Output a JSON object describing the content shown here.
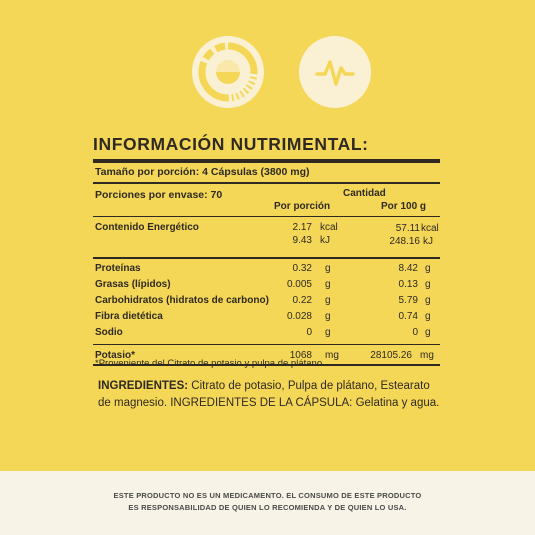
{
  "colors": {
    "background": "#F5D758",
    "icon_circle": "#FAF1D5",
    "icon_accent": "#F5D758",
    "text": "#2E2A22",
    "disclaimer_bg": "#F7F3E7"
  },
  "icons": [
    "digestion-progress-icon",
    "heartbeat-pulse-icon"
  ],
  "title": "INFORMACIÓN NUTRIMENTAL:",
  "serving_size": "Tamaño por porción: 4 Cápsulas (3800 mg)",
  "servings_per_container": "Porciones por envase:  70",
  "headers": {
    "cantidad": "Cantidad",
    "per_serving": "Por porción",
    "per_100g": "Por 100 g"
  },
  "energy": {
    "label": "Contenido Energético",
    "kcal_serving": "2.17",
    "kcal_unit": "kcal",
    "kcal_100g": "57.11",
    "kcal_unit_100g": "kcal",
    "kj_serving": "9.43",
    "kj_unit": "kJ",
    "kj_100g": "248.16",
    "kj_unit_100g": "kJ"
  },
  "nutrients": [
    {
      "label": "Proteínas",
      "serving": "0.32",
      "unit": "g",
      "per100": "8.42",
      "unit100": "g"
    },
    {
      "label": "Grasas (lípidos)",
      "serving": "0.005",
      "unit": "g",
      "per100": "0.13",
      "unit100": "g"
    },
    {
      "label": "Carbohidratos (hidratos de carbono)",
      "serving": "0.22",
      "unit": "g",
      "per100": "5.79",
      "unit100": "g"
    },
    {
      "label": "Fibra dietética",
      "serving": "0.028",
      "unit": "g",
      "per100": "0.74",
      "unit100": "g"
    },
    {
      "label": "Sodio",
      "serving": "0",
      "unit": "g",
      "per100": "0",
      "unit100": "g"
    }
  ],
  "potassium": {
    "label": "Potasio*",
    "serving": "1068",
    "unit": "mg",
    "per100": "28105.26",
    "unit100": "mg"
  },
  "footnote": "*Proveniente del Citrato de potasio y pulpa de plátano.",
  "ingredients": {
    "heading": "INGREDIENTES:",
    "text": " Citrato de potasio, Pulpa de plátano, Estearato de magnesio. INGREDIENTES DE LA CÁPSULA: Gelatina y agua."
  },
  "disclaimer": {
    "line1": "ESTE PRODUCTO NO ES UN MEDICAMENTO. EL CONSUMO DE ESTE PRODUCTO",
    "line2": "ES RESPONSABILIDAD DE QUIEN LO RECOMIENDA Y DE QUIEN LO USA."
  }
}
